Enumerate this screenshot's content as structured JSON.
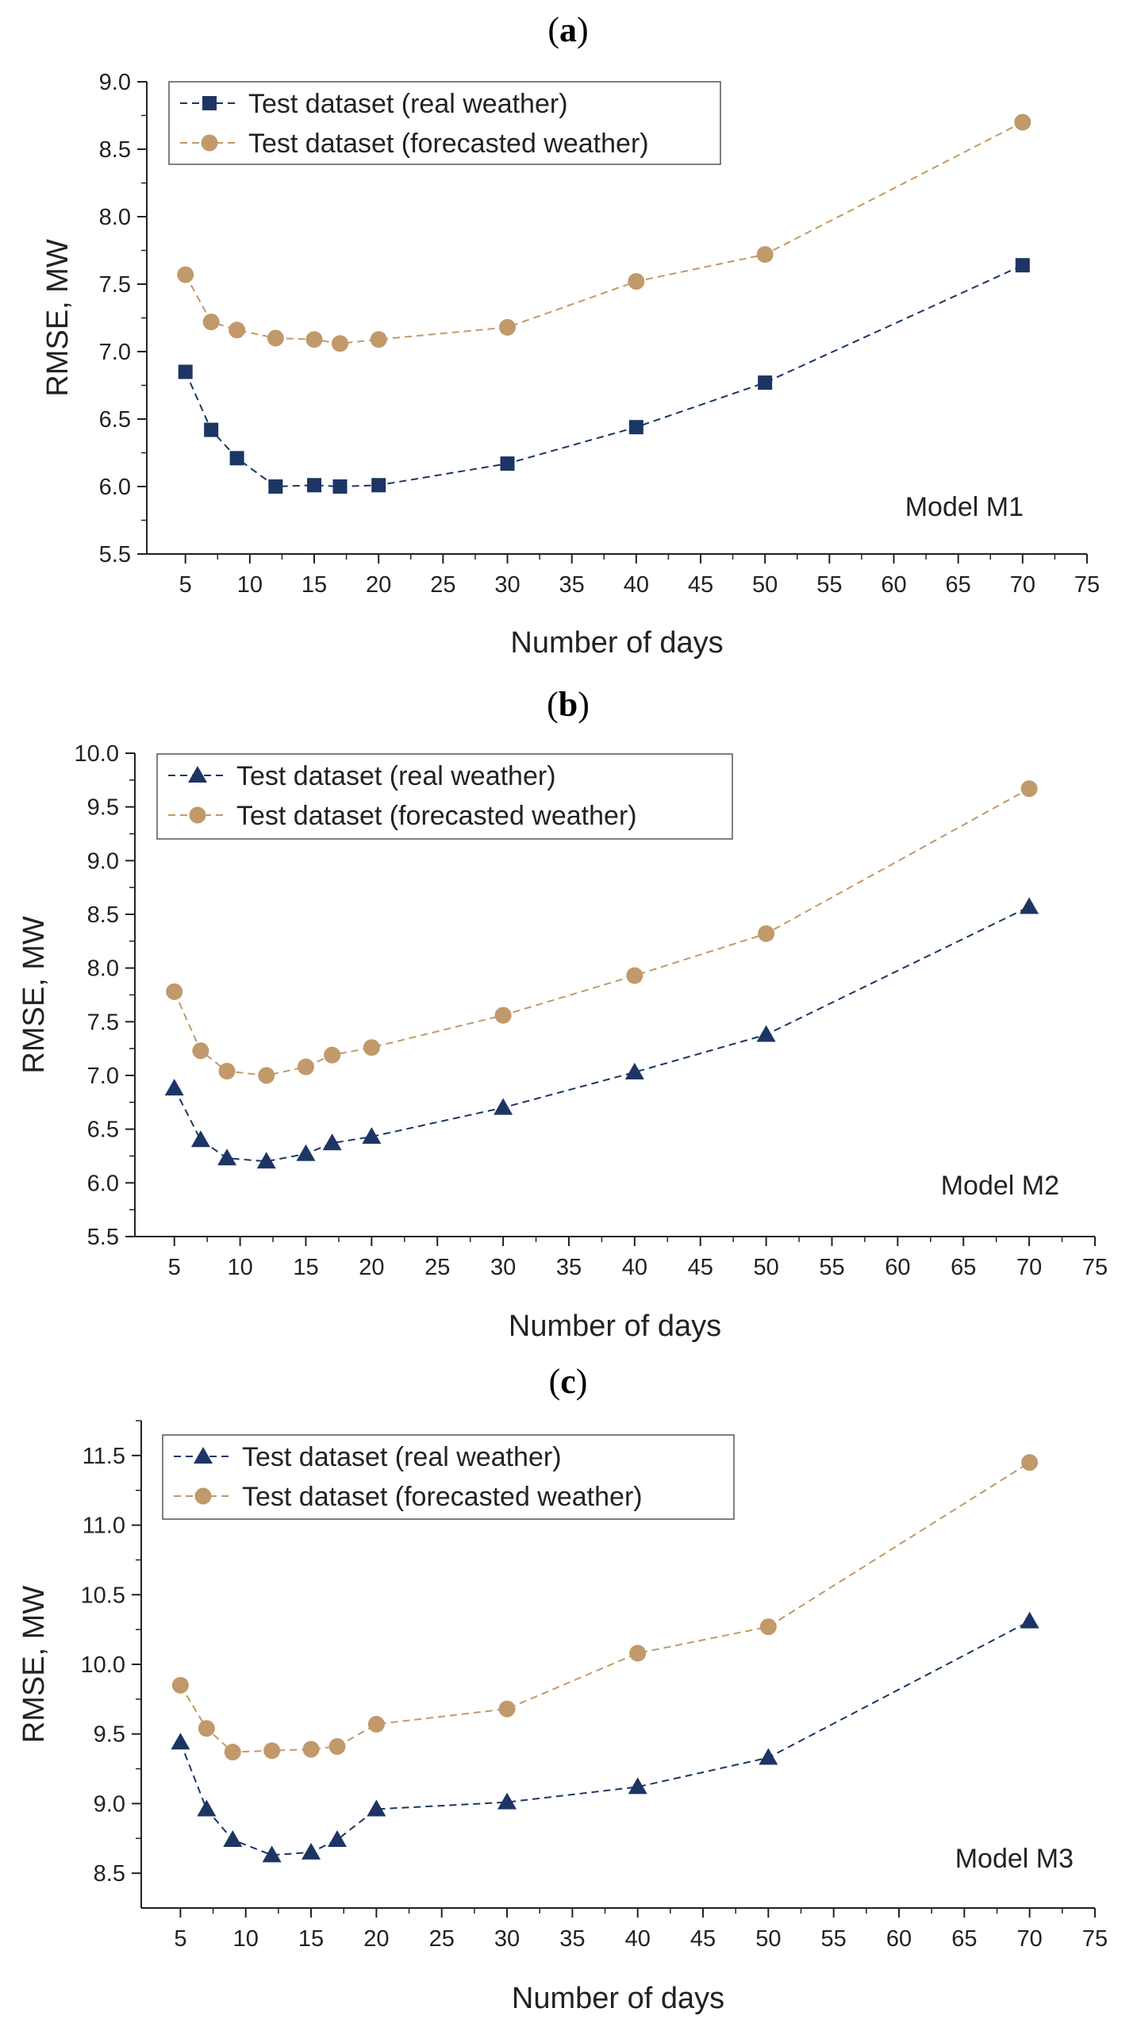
{
  "colors": {
    "real": "#1c3564",
    "forecast": "#c1996a",
    "axis": "#222222"
  },
  "chart_data": [
    {
      "type": "line",
      "panel_label": "(a)",
      "panel_letter": "a",
      "annotation": "Model M1",
      "xlabel": "Number of days",
      "ylabel": "RMSE, MW",
      "xlim": [
        2,
        75
      ],
      "ylim": [
        5.5,
        9.0
      ],
      "xticks": [
        5,
        10,
        15,
        20,
        25,
        30,
        35,
        40,
        45,
        50,
        55,
        60,
        65,
        70,
        75
      ],
      "yticks": [
        5.5,
        6.0,
        6.5,
        7.0,
        7.5,
        8.0,
        8.5,
        9.0
      ],
      "ytick_labels": [
        "5.5",
        "6.0",
        "6.5",
        "7.0",
        "7.5",
        "8.0",
        "8.5",
        "9.0"
      ],
      "x": [
        5,
        7,
        9,
        12,
        15,
        17,
        20,
        30,
        40,
        50,
        70
      ],
      "series": [
        {
          "name": "Test dataset (real weather)",
          "marker": "square",
          "color": "#1c3564",
          "values": [
            6.85,
            6.42,
            6.21,
            6.0,
            6.01,
            6.0,
            6.01,
            6.17,
            6.44,
            6.77,
            7.64
          ]
        },
        {
          "name": "Test dataset (forecasted weather)",
          "marker": "circle",
          "color": "#c1996a",
          "values": [
            7.57,
            7.22,
            7.16,
            7.1,
            7.09,
            7.06,
            7.09,
            7.18,
            7.52,
            7.72,
            8.7
          ]
        }
      ]
    },
    {
      "type": "line",
      "panel_label": "(b)",
      "panel_letter": "b",
      "annotation": "Model M2",
      "xlabel": "Number of days",
      "ylabel": "RMSE, MW",
      "xlim": [
        2,
        75
      ],
      "ylim": [
        5.5,
        10.0
      ],
      "xticks": [
        5,
        10,
        15,
        20,
        25,
        30,
        35,
        40,
        45,
        50,
        55,
        60,
        65,
        70,
        75
      ],
      "yticks": [
        5.5,
        6.0,
        6.5,
        7.0,
        7.5,
        8.0,
        8.5,
        9.0,
        9.5,
        10.0
      ],
      "ytick_labels": [
        "5.5",
        "6.0",
        "6.5",
        "7.0",
        "7.5",
        "8.0",
        "8.5",
        "9.0",
        "9.5",
        "10.0"
      ],
      "x": [
        5,
        7,
        9,
        12,
        15,
        17,
        20,
        30,
        40,
        50,
        70
      ],
      "series": [
        {
          "name": "Test dataset (real weather)",
          "marker": "triangle",
          "color": "#1c3564",
          "values": [
            6.88,
            6.4,
            6.23,
            6.2,
            6.27,
            6.37,
            6.43,
            6.7,
            7.03,
            7.38,
            8.57
          ]
        },
        {
          "name": "Test dataset (forecasted weather)",
          "marker": "circle",
          "color": "#c1996a",
          "values": [
            7.78,
            7.23,
            7.04,
            7.0,
            7.08,
            7.19,
            7.26,
            7.56,
            7.93,
            8.32,
            9.67
          ]
        }
      ]
    },
    {
      "type": "line",
      "panel_label": "(c)",
      "panel_letter": "c",
      "annotation": "Model M3",
      "xlabel": "Number of days",
      "ylabel": "RMSE, MW",
      "xlim": [
        2,
        75
      ],
      "ylim": [
        8.25,
        11.75
      ],
      "xticks": [
        5,
        10,
        15,
        20,
        25,
        30,
        35,
        40,
        45,
        50,
        55,
        60,
        65,
        70,
        75
      ],
      "yticks": [
        8.5,
        9.0,
        9.5,
        10.0,
        10.5,
        11.0,
        11.5
      ],
      "ytick_labels": [
        "8.5",
        "9.0",
        "9.5",
        "10.0",
        "10.5",
        "11.0",
        "11.5"
      ],
      "x": [
        5,
        7,
        9,
        12,
        15,
        17,
        20,
        30,
        40,
        50,
        70
      ],
      "series": [
        {
          "name": "Test dataset (real weather)",
          "marker": "triangle",
          "color": "#1c3564",
          "values": [
            9.44,
            8.96,
            8.74,
            8.63,
            8.65,
            8.74,
            8.96,
            9.01,
            9.12,
            9.33,
            10.31
          ]
        },
        {
          "name": "Test dataset (forecasted weather)",
          "marker": "circle",
          "color": "#c1996a",
          "values": [
            9.85,
            9.54,
            9.37,
            9.38,
            9.39,
            9.41,
            9.57,
            9.68,
            10.08,
            10.27,
            11.45
          ]
        }
      ]
    }
  ]
}
